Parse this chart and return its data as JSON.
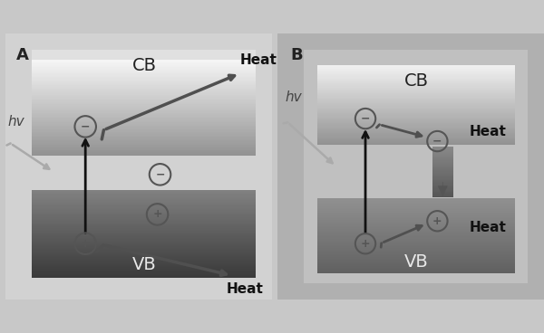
{
  "bg_color": "#c8c8c8",
  "panel_A_bg": "#d2d2d2",
  "panel_B_bg": "#b0b0b0",
  "cb_A_top": "#f5f5f5",
  "cb_A_bot": "#909090",
  "vb_A_top": "#808080",
  "vb_A_bot": "#383838",
  "cb_B_top": "#f0f0f0",
  "cb_B_bot": "#909090",
  "vb_B_top": "#909090",
  "vb_B_bot": "#606060",
  "arrow_dark": "#111111",
  "wavy_dark": "#505050",
  "wavy_light": "#999999",
  "panel_A_label": "A",
  "panel_B_label": "B",
  "cb_label": "CB",
  "vb_label": "VB",
  "heat_label": "Heat",
  "hv_label": "hv"
}
